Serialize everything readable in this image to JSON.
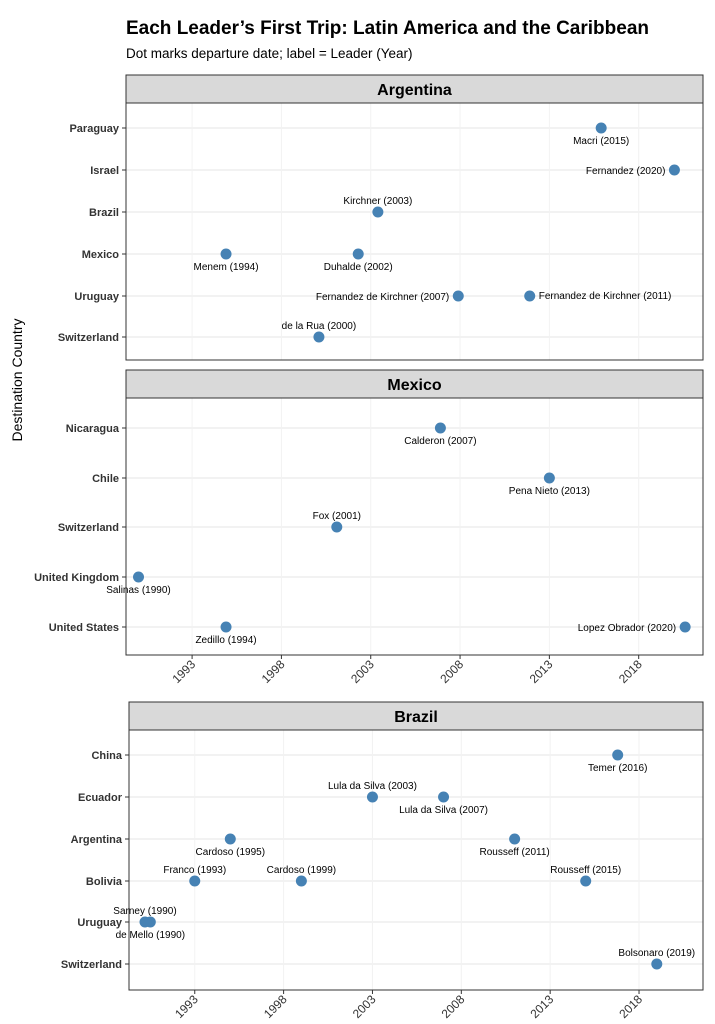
{
  "title": "Each Leader’s First Trip: Latin America and the Caribbean",
  "subtitle": "Dot marks departure date; label = Leader (Year)",
  "y_axis_label": "Destination Country",
  "colors": {
    "point": "#4682b4",
    "strip": "#d9d9d9",
    "border": "#333333",
    "grid": "#e5e5e5"
  },
  "chart_data": [
    {
      "type": "scatter",
      "panel": "Argentina",
      "categories": [
        "Paraguay",
        "Israel",
        "Brazil",
        "Mexico",
        "Uruguay",
        "Switzerland"
      ],
      "xlim": [
        1989.3,
        2021.6
      ],
      "x_ticks": [],
      "points": [
        {
          "country": "Paraguay",
          "x": 2015.9,
          "label": "Macri (2015)",
          "label_pos": "below"
        },
        {
          "country": "Israel",
          "x": 2020.0,
          "label": "Fernandez (2020)",
          "label_pos": "left"
        },
        {
          "country": "Brazil",
          "x": 2003.4,
          "label": "Kirchner (2003)",
          "label_pos": "above"
        },
        {
          "country": "Mexico",
          "x": 1994.9,
          "label": "Menem (1994)",
          "label_pos": "below"
        },
        {
          "country": "Mexico",
          "x": 2002.3,
          "label": "Duhalde (2002)",
          "label_pos": "below"
        },
        {
          "country": "Uruguay",
          "x": 2007.9,
          "label": "Fernandez de Kirchner (2007)",
          "label_pos": "left"
        },
        {
          "country": "Uruguay",
          "x": 2011.9,
          "label": "Fernandez de Kirchner (2011)",
          "label_pos": "right"
        },
        {
          "country": "Switzerland",
          "x": 2000.1,
          "label": "de la Rua (2000)",
          "label_pos": "above"
        }
      ]
    },
    {
      "type": "scatter",
      "panel": "Mexico",
      "categories": [
        "Nicaragua",
        "Chile",
        "Switzerland",
        "United Kingdom",
        "United States"
      ],
      "xlim": [
        1989.3,
        2021.6
      ],
      "x_ticks": [
        "1993",
        "1998",
        "2003",
        "2008",
        "2013",
        "2018"
      ],
      "points": [
        {
          "country": "Nicaragua",
          "x": 2006.9,
          "label": "Calderon (2007)",
          "label_pos": "below"
        },
        {
          "country": "Chile",
          "x": 2013.0,
          "label": "Pena Nieto (2013)",
          "label_pos": "below"
        },
        {
          "country": "Switzerland",
          "x": 2001.1,
          "label": "Fox (2001)",
          "label_pos": "above"
        },
        {
          "country": "United Kingdom",
          "x": 1990.0,
          "label": "Salinas (1990)",
          "label_pos": "below"
        },
        {
          "country": "United States",
          "x": 1994.9,
          "label": "Zedillo (1994)",
          "label_pos": "below"
        },
        {
          "country": "United States",
          "x": 2020.6,
          "label": "Lopez Obrador (2020)",
          "label_pos": "left"
        }
      ]
    },
    {
      "type": "scatter",
      "panel": "Brazil",
      "categories": [
        "China",
        "Ecuador",
        "Argentina",
        "Bolivia",
        "Uruguay",
        "Switzerland"
      ],
      "xlim": [
        1989.3,
        2021.6
      ],
      "x_ticks": [
        "1993",
        "1998",
        "2003",
        "2008",
        "2013",
        "2018"
      ],
      "points": [
        {
          "country": "China",
          "x": 2016.8,
          "label": "Temer (2016)",
          "label_pos": "below"
        },
        {
          "country": "Ecuador",
          "x": 2003.0,
          "label": "Lula da Silva (2003)",
          "label_pos": "above"
        },
        {
          "country": "Ecuador",
          "x": 2007.0,
          "label": "Lula da Silva (2007)",
          "label_pos": "below"
        },
        {
          "country": "Argentina",
          "x": 1995.0,
          "label": "Cardoso (1995)",
          "label_pos": "below"
        },
        {
          "country": "Argentina",
          "x": 2011.0,
          "label": "Rousseff (2011)",
          "label_pos": "below"
        },
        {
          "country": "Bolivia",
          "x": 1993.0,
          "label": "Franco (1993)",
          "label_pos": "above"
        },
        {
          "country": "Bolivia",
          "x": 1999.0,
          "label": "Cardoso (1999)",
          "label_pos": "above"
        },
        {
          "country": "Bolivia",
          "x": 2015.0,
          "label": "Rousseff (2015)",
          "label_pos": "above"
        },
        {
          "country": "Uruguay",
          "x": 1990.2,
          "label": "Sarney (1990)",
          "label_pos": "above"
        },
        {
          "country": "Uruguay",
          "x": 1990.5,
          "label": "de Mello (1990)",
          "label_pos": "below"
        },
        {
          "country": "Switzerland",
          "x": 2019.0,
          "label": "Bolsonaro (2019)",
          "label_pos": "above"
        }
      ]
    }
  ]
}
